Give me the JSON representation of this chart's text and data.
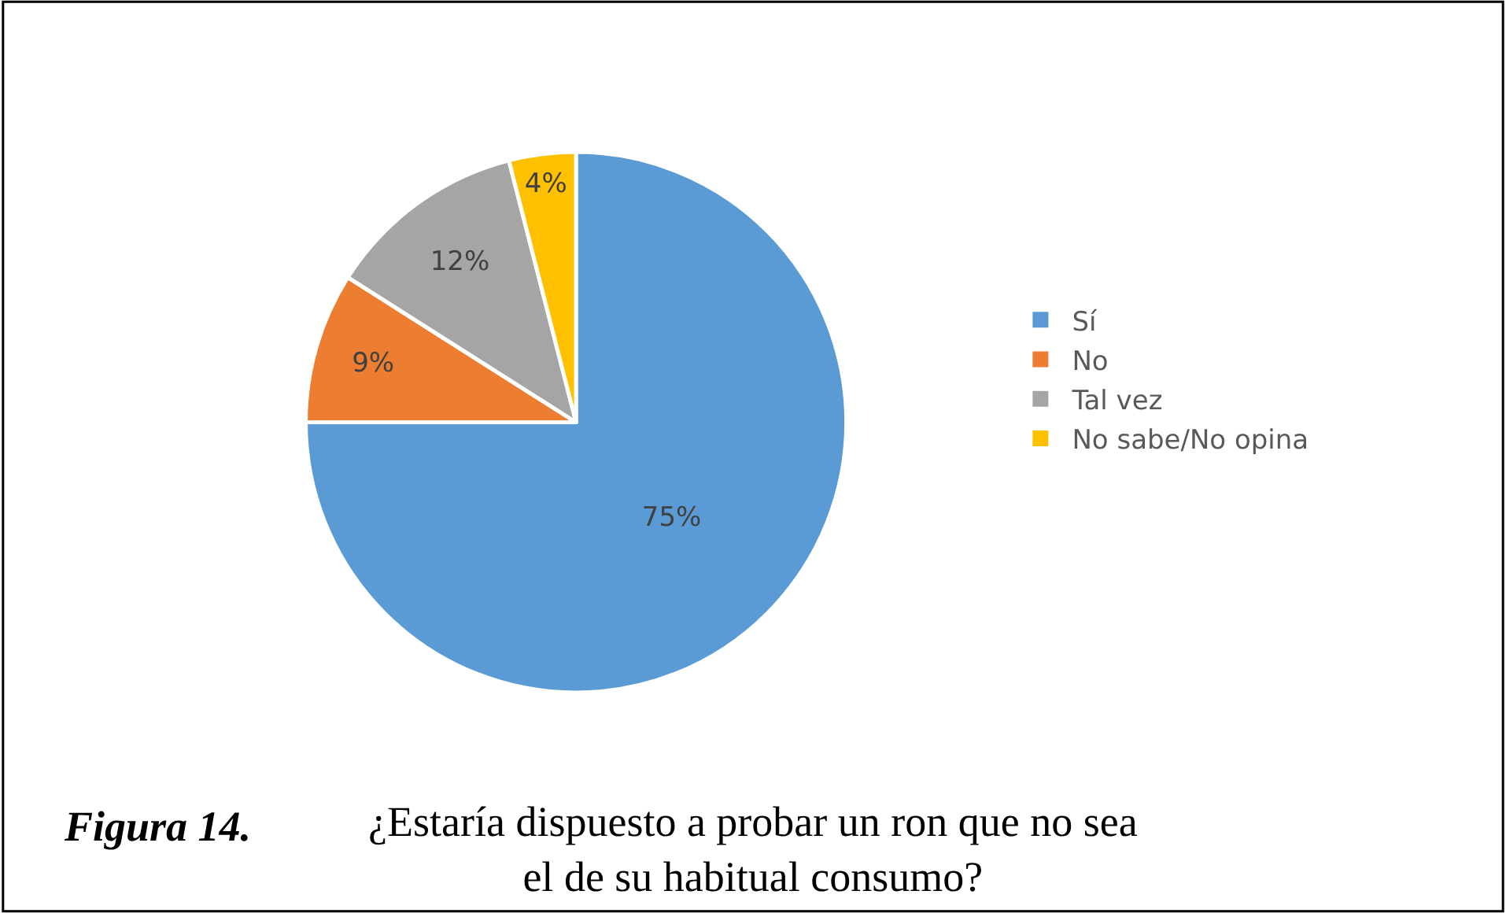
{
  "chart_data": {
    "type": "pie",
    "categories": [
      "Sí",
      "No",
      "Tal vez",
      "No sabe/No opina"
    ],
    "values": [
      75,
      9,
      12,
      4
    ],
    "colors": [
      "#5b9bd5",
      "#ed7d31",
      "#a5a5a5",
      "#ffc000"
    ],
    "value_labels": [
      "75%",
      "9%",
      "12%",
      "4%"
    ],
    "legend": "right",
    "annotations": [
      "Figura 14.",
      "¿Estaría dispuesto a probar un ron que no sea el de su habitual consumo?"
    ]
  }
}
